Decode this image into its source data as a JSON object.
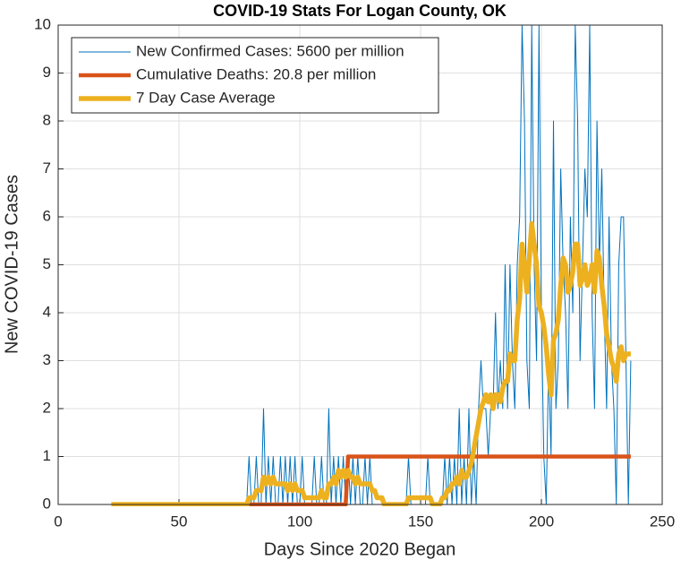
{
  "chart_data": {
    "type": "line",
    "title": "COVID-19 Stats For Logan County, OK",
    "xlabel": "Days Since 2020 Began",
    "ylabel": "New COVID-19 Cases",
    "xlim": [
      0,
      250
    ],
    "ylim": [
      0,
      10
    ],
    "xticks": [
      0,
      50,
      100,
      150,
      200,
      250
    ],
    "yticks": [
      0,
      1,
      2,
      3,
      4,
      5,
      6,
      7,
      8,
      9,
      10
    ],
    "grid": true,
    "legend": "upper left",
    "x": [
      22,
      23,
      24,
      25,
      26,
      27,
      28,
      29,
      30,
      31,
      32,
      33,
      34,
      35,
      36,
      37,
      38,
      39,
      40,
      41,
      42,
      43,
      44,
      45,
      46,
      47,
      48,
      49,
      50,
      51,
      52,
      53,
      54,
      55,
      56,
      57,
      58,
      59,
      60,
      61,
      62,
      63,
      64,
      65,
      66,
      67,
      68,
      69,
      70,
      71,
      72,
      73,
      74,
      75,
      76,
      77,
      78,
      79,
      80,
      81,
      82,
      83,
      84,
      85,
      86,
      87,
      88,
      89,
      90,
      91,
      92,
      93,
      94,
      95,
      96,
      97,
      98,
      99,
      100,
      101,
      102,
      103,
      104,
      105,
      106,
      107,
      108,
      109,
      110,
      111,
      112,
      113,
      114,
      115,
      116,
      117,
      118,
      119,
      120,
      121,
      122,
      123,
      124,
      125,
      126,
      127,
      128,
      129,
      130,
      131,
      132,
      133,
      134,
      135,
      136,
      137,
      138,
      139,
      140,
      141,
      142,
      143,
      144,
      145,
      146,
      147,
      148,
      149,
      150,
      151,
      152,
      153,
      154,
      155,
      156,
      157,
      158,
      159,
      160,
      161,
      162,
      163,
      164,
      165,
      166,
      167,
      168,
      169,
      170,
      171,
      172,
      173,
      174,
      175,
      176,
      177,
      178,
      179,
      180,
      181,
      182,
      183,
      184,
      185,
      186,
      187,
      188,
      189,
      190,
      191,
      192,
      193,
      194,
      195,
      196,
      197,
      198,
      199,
      200,
      201,
      202,
      203,
      204,
      205,
      206,
      207,
      208,
      209,
      210,
      211,
      212,
      213,
      214,
      215,
      216,
      217,
      218,
      219,
      220,
      221,
      222,
      223,
      224,
      225,
      226,
      227,
      228,
      229,
      230,
      231,
      232,
      233,
      234,
      235,
      236,
      237
    ],
    "series": [
      {
        "name": "New Confirmed Cases: 5600 per million",
        "color": "#0072BD",
        "width": 1,
        "values": [
          0,
          0,
          0,
          0,
          0,
          0,
          0,
          0,
          0,
          0,
          0,
          0,
          0,
          0,
          0,
          0,
          0,
          0,
          0,
          0,
          0,
          0,
          0,
          0,
          0,
          0,
          0,
          0,
          0,
          0,
          0,
          0,
          0,
          0,
          0,
          0,
          0,
          0,
          0,
          0,
          0,
          0,
          0,
          0,
          0,
          0,
          0,
          0,
          0,
          0,
          0,
          0,
          0,
          0,
          0,
          0,
          0,
          1,
          0,
          0,
          1,
          0,
          0,
          2,
          0,
          1,
          0,
          1,
          0,
          0,
          1,
          0,
          1,
          0,
          1,
          0,
          1,
          0,
          0,
          1,
          0,
          0,
          0,
          0,
          1,
          0,
          0,
          1,
          0,
          0,
          2,
          0,
          1,
          0,
          1,
          0,
          1,
          0,
          1,
          0,
          1,
          0,
          1,
          0,
          0,
          1,
          0,
          1,
          0,
          0,
          0,
          0,
          0,
          0,
          0,
          0,
          0,
          0,
          0,
          0,
          0,
          0,
          0,
          1,
          0,
          0,
          0,
          0,
          0,
          0,
          0,
          1,
          0,
          0,
          0,
          0,
          0,
          0,
          1,
          0,
          1,
          0,
          1,
          0,
          2,
          0,
          1,
          0,
          2,
          0,
          1,
          0,
          2,
          3,
          2,
          2,
          1,
          2,
          2,
          4,
          2,
          3,
          2,
          5,
          2,
          5,
          3,
          2,
          5,
          6,
          10,
          8,
          3,
          2,
          10,
          5,
          3,
          10,
          4,
          1,
          0,
          3,
          1,
          8,
          2,
          3,
          7,
          5,
          4,
          2,
          6,
          4,
          10,
          8,
          3,
          5,
          7,
          6,
          10,
          4,
          2,
          8,
          5,
          7,
          4,
          2,
          6,
          3,
          2,
          0,
          5,
          6,
          6,
          3,
          0,
          3
        ]
      },
      {
        "name": "Cumulative Deaths: 20.8 per million",
        "color": "#D95319",
        "width": 4.5,
        "values": [
          null,
          null,
          null,
          null,
          null,
          null,
          null,
          null,
          null,
          null,
          null,
          null,
          null,
          null,
          null,
          null,
          null,
          null,
          null,
          null,
          null,
          null,
          null,
          null,
          null,
          null,
          null,
          null,
          null,
          null,
          null,
          null,
          null,
          null,
          null,
          null,
          null,
          null,
          null,
          null,
          null,
          null,
          null,
          null,
          null,
          null,
          null,
          null,
          null,
          null,
          null,
          null,
          null,
          null,
          null,
          null,
          null,
          0,
          0,
          0,
          0,
          0,
          0,
          0,
          0,
          0,
          0,
          0,
          0,
          0,
          0,
          0,
          0,
          0,
          0,
          0,
          0,
          0,
          0,
          0,
          0,
          0,
          0,
          0,
          0,
          0,
          0,
          0,
          0,
          0,
          0,
          0,
          0,
          0,
          0,
          0,
          0,
          0,
          1,
          1,
          1,
          1,
          1,
          1,
          1,
          1,
          1,
          1,
          1,
          1,
          1,
          1,
          1,
          1,
          1,
          1,
          1,
          1,
          1,
          1,
          1,
          1,
          1,
          1,
          1,
          1,
          1,
          1,
          1,
          1,
          1,
          1,
          1,
          1,
          1,
          1,
          1,
          1,
          1,
          1,
          1,
          1,
          1,
          1,
          1,
          1,
          1,
          1,
          1,
          1,
          1,
          1,
          1,
          1,
          1,
          1,
          1,
          1,
          1,
          1,
          1,
          1,
          1,
          1,
          1,
          1,
          1,
          1,
          1,
          1,
          1,
          1,
          1,
          1,
          1,
          1,
          1,
          1,
          1,
          1,
          1,
          1,
          1,
          1,
          1,
          1,
          1,
          1,
          1,
          1,
          1,
          1,
          1,
          1,
          1,
          1,
          1,
          1,
          1,
          1,
          1,
          1,
          1,
          1,
          1,
          1,
          1,
          1,
          1,
          1,
          1,
          1,
          1,
          1,
          1,
          1
        ]
      },
      {
        "name": "7 Day Case Average",
        "color": "#EDB120",
        "width": 5.5,
        "values": [
          0,
          0,
          0,
          0,
          0,
          0,
          0,
          0,
          0,
          0,
          0,
          0,
          0,
          0,
          0,
          0,
          0,
          0,
          0,
          0,
          0,
          0,
          0,
          0,
          0,
          0,
          0,
          0,
          0,
          0,
          0,
          0,
          0,
          0,
          0,
          0,
          0,
          0,
          0,
          0,
          0,
          0,
          0,
          0,
          0,
          0,
          0,
          0,
          0,
          0,
          0,
          0,
          0,
          0,
          0,
          0,
          0,
          0.14,
          0.14,
          0.14,
          0.29,
          0.29,
          0.29,
          0.57,
          0.43,
          0.57,
          0.43,
          0.57,
          0.43,
          0.43,
          0.43,
          0.43,
          0.43,
          0.29,
          0.43,
          0.29,
          0.43,
          0.29,
          0.29,
          0.29,
          0.14,
          0.14,
          0.14,
          0.14,
          0.14,
          0.14,
          0.14,
          0.29,
          0.14,
          0.14,
          0.43,
          0.43,
          0.57,
          0.43,
          0.71,
          0.57,
          0.71,
          0.57,
          0.71,
          0.57,
          0.57,
          0.43,
          0.57,
          0.43,
          0.43,
          0.43,
          0.43,
          0.43,
          0.29,
          0.29,
          0.14,
          0.14,
          0.14,
          0,
          0,
          0,
          0,
          0,
          0,
          0,
          0,
          0,
          0,
          0.14,
          0.14,
          0.14,
          0.14,
          0.14,
          0.14,
          0.14,
          0.14,
          0.14,
          0.14,
          0,
          0,
          0,
          0,
          0.14,
          0.14,
          0.29,
          0.29,
          0.43,
          0.43,
          0.57,
          0.43,
          0.71,
          0.57,
          0.57,
          0.71,
          0.86,
          1.14,
          1.43,
          1.71,
          2,
          2.14,
          2.29,
          2.14,
          2.29,
          2,
          2.29,
          2.29,
          2.14,
          2.43,
          2.57,
          2.57,
          3.14,
          3,
          3,
          3.86,
          4.29,
          5.43,
          5,
          4.43,
          5.14,
          5.86,
          5.43,
          5,
          4.14,
          4,
          3.71,
          3.29,
          2.71,
          2.29,
          3.43,
          3.57,
          3.86,
          4.57,
          5.14,
          5,
          4.43,
          4.57,
          4.86,
          5.43,
          5.43,
          4.57,
          4.71,
          5,
          4.57,
          4.71,
          5,
          4.43,
          5.29,
          5.14,
          4.57,
          4.14,
          3.57,
          3.29,
          3,
          2.86,
          2.57,
          3.14,
          3.29,
          3,
          3.14,
          3.14,
          3.14
        ]
      }
    ]
  }
}
